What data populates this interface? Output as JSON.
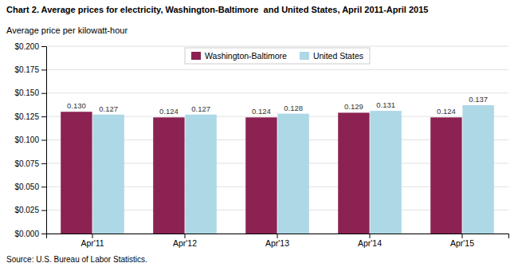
{
  "chart_data": {
    "type": "bar",
    "title": "Chart 2. Average prices for electricity, Washington-Baltimore  and United States, April 2011-April 2015",
    "ylabel": "Average price per kilowatt-hour",
    "annotations": [
      "Source: U.S. Bureau of Labor Statistics."
    ],
    "categories": [
      "Apr'11",
      "Apr'12",
      "Apr'13",
      "Apr'14",
      "Apr'15"
    ],
    "series": [
      {
        "name": "Washington-Baltimore",
        "color": "#8B2252",
        "values": [
          0.13,
          0.124,
          0.124,
          0.129,
          0.124
        ],
        "value_labels": [
          "0.130",
          "0.124",
          "0.124",
          "0.129",
          "0.124"
        ]
      },
      {
        "name": "United States",
        "color": "#ADD8E6",
        "values": [
          0.127,
          0.127,
          0.128,
          0.131,
          0.137
        ],
        "value_labels": [
          "0.127",
          "0.127",
          "0.128",
          "0.131",
          "0.137"
        ]
      }
    ],
    "ylim": [
      0.0,
      0.2
    ],
    "yticks": [
      {
        "value": 0.0,
        "label": "$0.000"
      },
      {
        "value": 0.025,
        "label": "$0.025"
      },
      {
        "value": 0.05,
        "label": "$0.050"
      },
      {
        "value": 0.075,
        "label": "$0.075"
      },
      {
        "value": 0.1,
        "label": "$0.100"
      },
      {
        "value": 0.125,
        "label": "$0.125"
      },
      {
        "value": 0.15,
        "label": "$0.150"
      },
      {
        "value": 0.175,
        "label": "$0.175"
      },
      {
        "value": 0.2,
        "label": "$0.200"
      }
    ],
    "grid": true,
    "legend": "top",
    "data_labels": true
  }
}
